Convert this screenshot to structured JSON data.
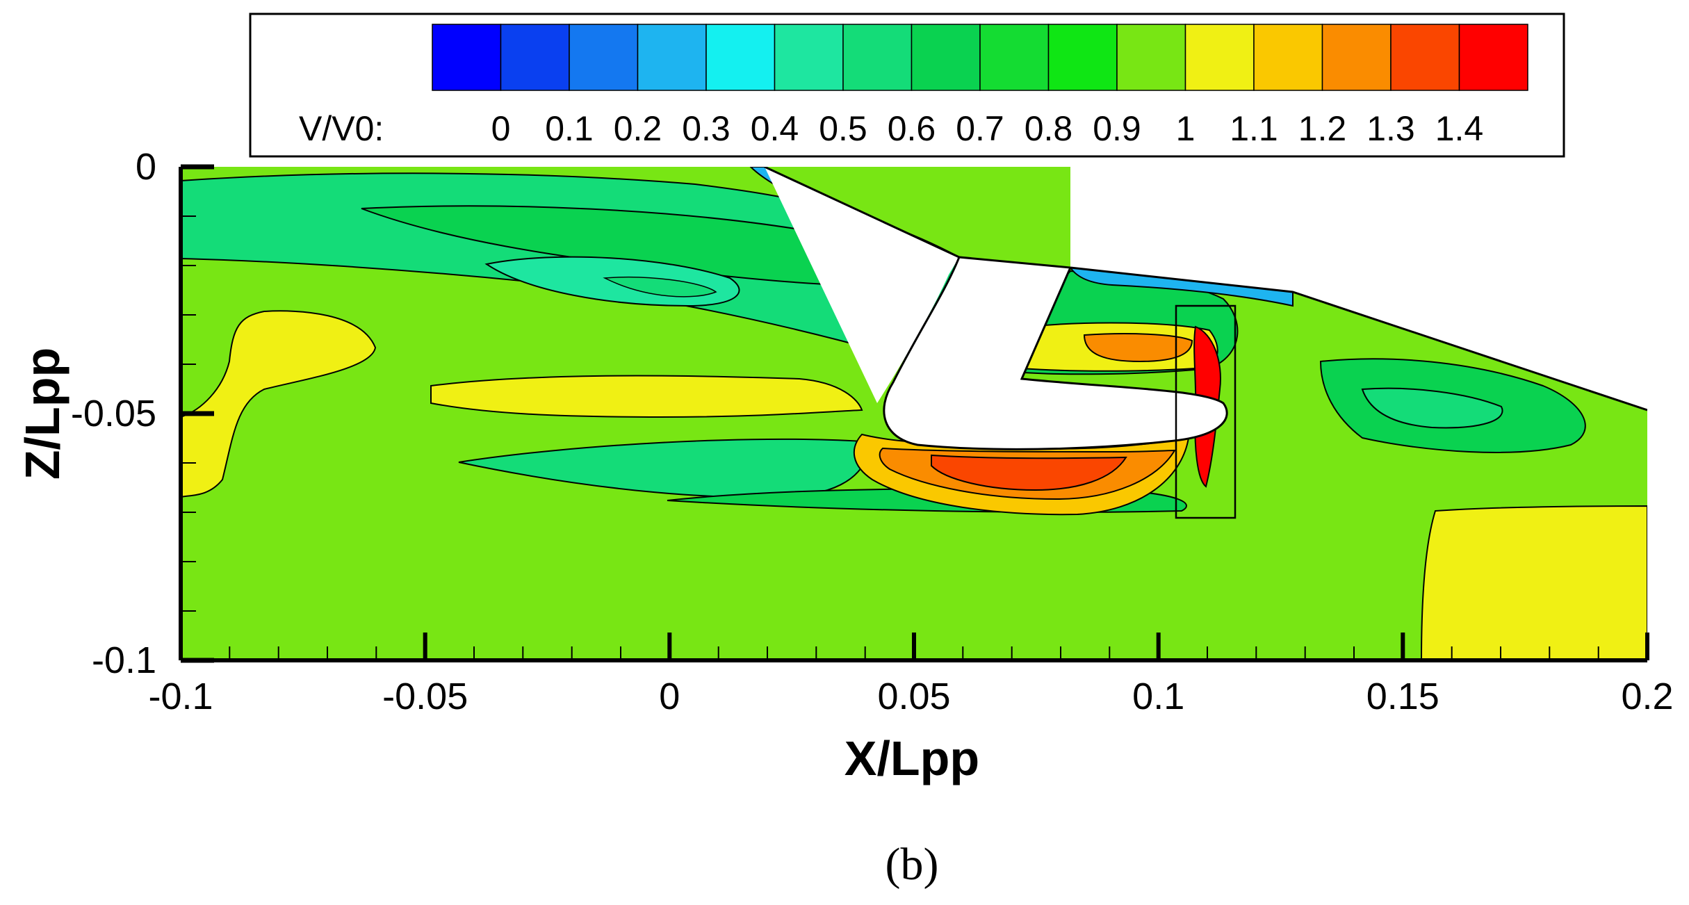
{
  "chart_data": {
    "type": "contour",
    "title": "",
    "xlabel": "X/Lpp",
    "ylabel": "Z/Lpp",
    "xlim": [
      -0.1,
      0.2
    ],
    "ylim": [
      -0.1,
      0
    ],
    "xticks": [
      "-0.1",
      "-0.05",
      "0",
      "0.05",
      "0.1",
      "0.15",
      "0.2"
    ],
    "yticks": [
      "0",
      "-0.05",
      "-0.1"
    ],
    "legend": {
      "variable_label": "V/V0:",
      "placement": "top",
      "levels": [
        0,
        0.1,
        0.2,
        0.3,
        0.4,
        0.5,
        0.6,
        0.7,
        0.8,
        0.9,
        1,
        1.1,
        1.2,
        1.3,
        1.4
      ],
      "level_labels": [
        "0",
        "0.1",
        "0.2",
        "0.3",
        "0.4",
        "0.5",
        "0.6",
        "0.7",
        "0.8",
        "0.9",
        "1",
        "1.1",
        "1.2",
        "1.3",
        "1.4"
      ],
      "colors": [
        "#0000ff",
        "#0a40f0",
        "#1478f0",
        "#1eb4f0",
        "#14f0f0",
        "#1ee6a0",
        "#14dc78",
        "#0ad250",
        "#14dc32",
        "#0fe614",
        "#78e614",
        "#f0f014",
        "#fac800",
        "#fa8c00",
        "#fa4600",
        "#ff0000"
      ]
    },
    "regions": {
      "freestream_level": 0.9,
      "upper_hull_wake_min": 0.5,
      "lower_hull_accel_max": 1.3,
      "propeller_tip_max": 1.4,
      "aft_outflow_level": 1.0
    }
  },
  "caption": "(b)"
}
